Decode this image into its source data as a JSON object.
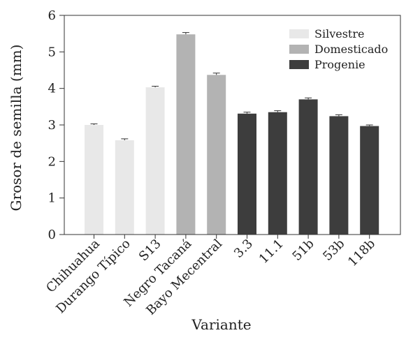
{
  "chart_data": {
    "type": "bar",
    "xlabel": "Variante",
    "ylabel": "Grosor de semilla (mm)",
    "ylim": [
      0,
      6
    ],
    "yticks": [
      0,
      1,
      2,
      3,
      4,
      5,
      6
    ],
    "grid": false,
    "legend_position": "top-right",
    "categories": [
      "Chihuahua",
      "Durango Típico",
      "S13",
      "Negro Tacaná",
      "Bayo Mecentral",
      "3.3",
      "11.1",
      "51b",
      "53b",
      "118b"
    ],
    "values": [
      3.0,
      2.58,
      4.03,
      5.48,
      4.37,
      3.31,
      3.35,
      3.7,
      3.24,
      2.97
    ],
    "errors": [
      0.03,
      0.04,
      0.03,
      0.05,
      0.05,
      0.04,
      0.04,
      0.04,
      0.04,
      0.03
    ],
    "groups": [
      "Silvestre",
      "Silvestre",
      "Silvestre",
      "Domesticado",
      "Domesticado",
      "Progenie",
      "Progenie",
      "Progenie",
      "Progenie",
      "Progenie"
    ],
    "legend": [
      {
        "name": "Silvestre",
        "color": "#e8e8e8"
      },
      {
        "name": "Domesticado",
        "color": "#b3b3b3"
      },
      {
        "name": "Progenie",
        "color": "#3d3d3d"
      }
    ]
  }
}
